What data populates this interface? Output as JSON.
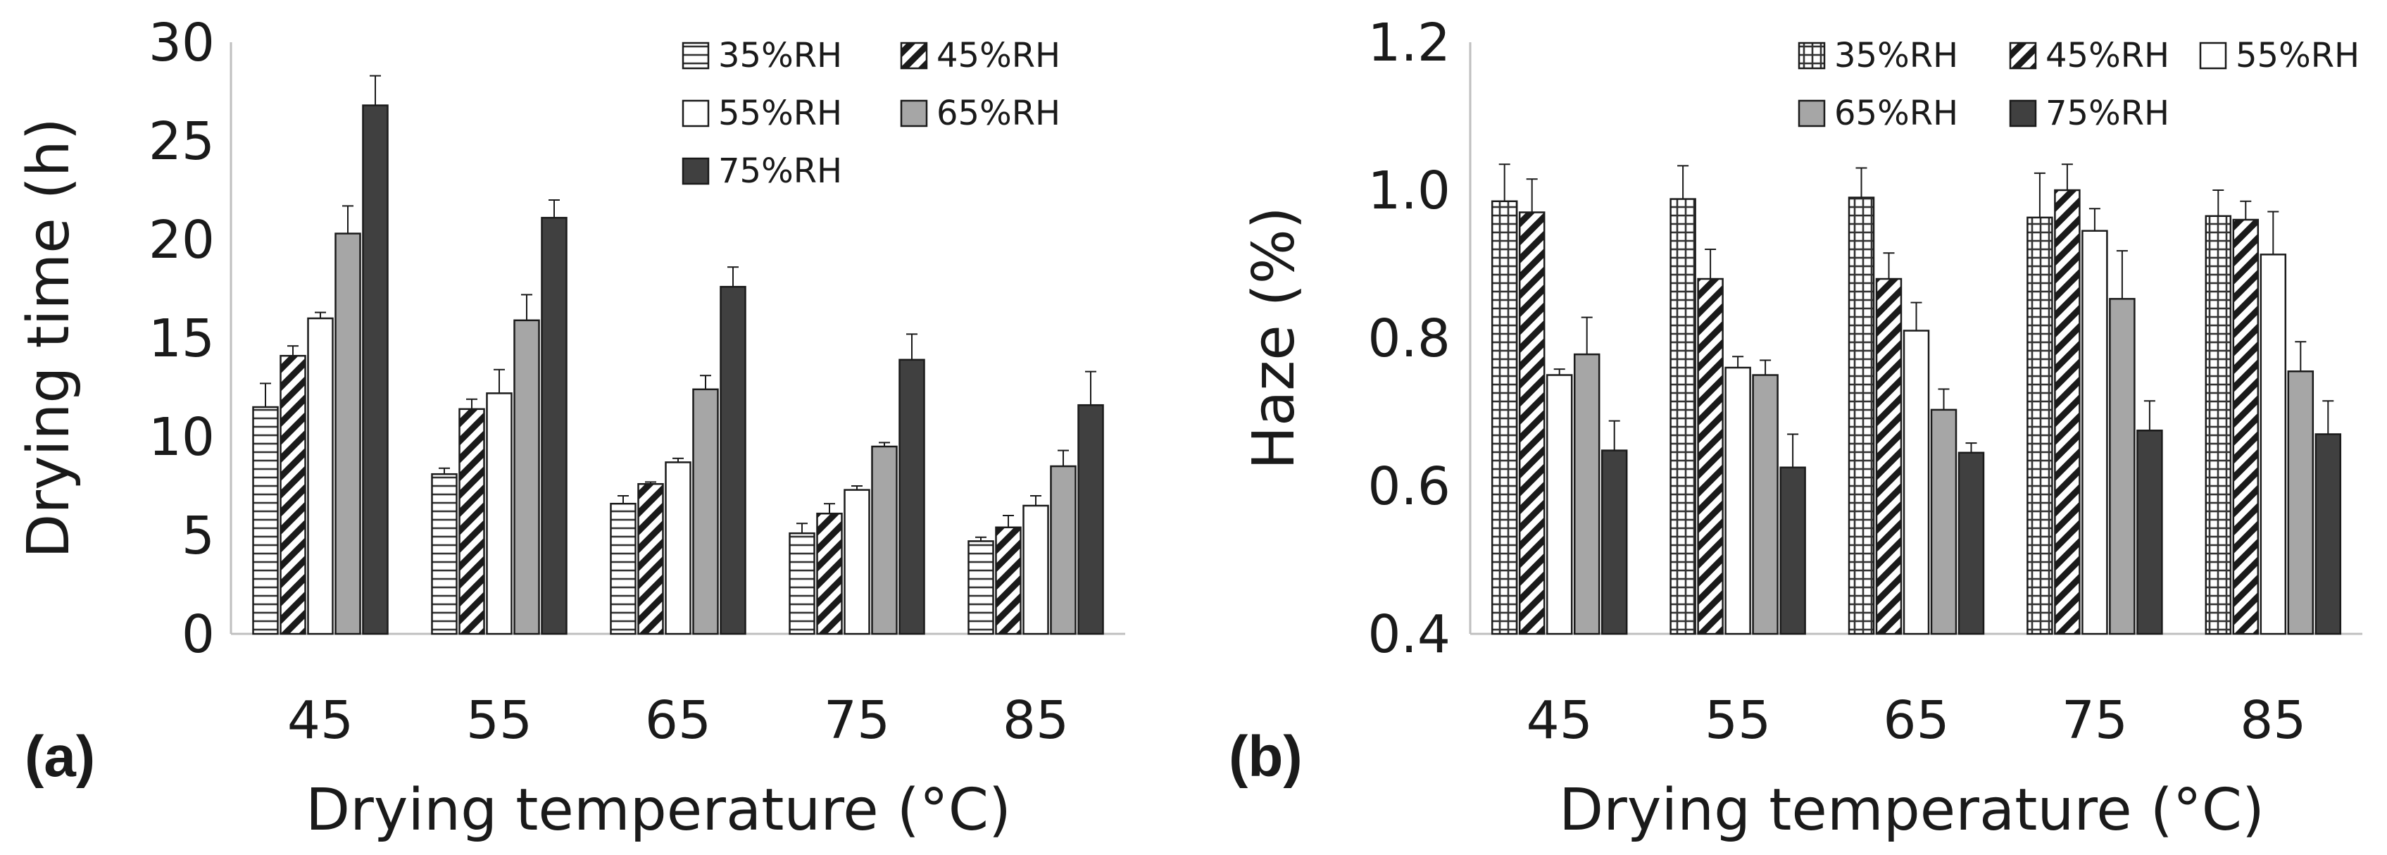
{
  "chart_data": [
    {
      "type": "bar",
      "panel_label": "(a)",
      "ylabel": "Drying time (h)",
      "xlabel": "Drying temperature (°C)",
      "ylim": [
        0,
        30
      ],
      "yticks": [
        "0",
        "5",
        "10",
        "15",
        "20",
        "25",
        "30"
      ],
      "ytick_values": [
        0,
        5,
        10,
        15,
        20,
        25,
        30
      ],
      "categories": [
        "45",
        "55",
        "65",
        "75",
        "85"
      ],
      "legend_position": "top-right",
      "series": [
        {
          "name": "35%RH",
          "style": "hlines",
          "values": [
            11.5,
            8.1,
            6.6,
            5.1,
            4.7
          ],
          "errors": [
            1.2,
            0.3,
            0.4,
            0.5,
            0.2
          ]
        },
        {
          "name": "45%RH",
          "style": "diag",
          "values": [
            14.1,
            11.4,
            7.6,
            6.1,
            5.4
          ],
          "errors": [
            0.5,
            0.5,
            0.1,
            0.5,
            0.6
          ]
        },
        {
          "name": "55%RH",
          "style": "white",
          "values": [
            16.0,
            12.2,
            8.7,
            7.3,
            6.5
          ],
          "errors": [
            0.3,
            1.2,
            0.2,
            0.2,
            0.5
          ]
        },
        {
          "name": "65%RH",
          "style": "gray",
          "values": [
            20.3,
            15.9,
            12.4,
            9.5,
            8.5
          ],
          "errors": [
            1.4,
            1.3,
            0.7,
            0.2,
            0.8
          ]
        },
        {
          "name": "75%RH",
          "style": "dark",
          "values": [
            26.8,
            21.1,
            17.6,
            13.9,
            11.6
          ],
          "errors": [
            1.5,
            0.9,
            1.0,
            1.3,
            1.7
          ]
        }
      ]
    },
    {
      "type": "bar",
      "panel_label": "(b)",
      "ylabel": "Haze (%)",
      "xlabel": "Drying temperature (°C)",
      "ylim": [
        0.4,
        1.2
      ],
      "yticks": [
        "0.4",
        "0.6",
        "0.8",
        "1.0",
        "1.2"
      ],
      "ytick_values": [
        0.4,
        0.6,
        0.8,
        1.0,
        1.2
      ],
      "categories": [
        "45",
        "55",
        "65",
        "75",
        "85"
      ],
      "legend_position": "top-right",
      "series": [
        {
          "name": "35%RH",
          "style": "vlines",
          "values": [
            0.985,
            0.988,
            0.99,
            0.963,
            0.965
          ],
          "errors": [
            0.05,
            0.045,
            0.04,
            0.06,
            0.035
          ]
        },
        {
          "name": "45%RH",
          "style": "diag",
          "values": [
            0.97,
            0.88,
            0.88,
            1.0,
            0.96
          ],
          "errors": [
            0.045,
            0.04,
            0.035,
            0.035,
            0.025
          ]
        },
        {
          "name": "55%RH",
          "style": "white",
          "values": [
            0.75,
            0.76,
            0.81,
            0.945,
            0.913
          ],
          "errors": [
            0.008,
            0.015,
            0.038,
            0.03,
            0.058
          ]
        },
        {
          "name": "65%RH",
          "style": "gray",
          "values": [
            0.778,
            0.75,
            0.703,
            0.853,
            0.755
          ],
          "errors": [
            0.05,
            0.02,
            0.028,
            0.065,
            0.04
          ]
        },
        {
          "name": "75%RH",
          "style": "dark",
          "values": [
            0.648,
            0.625,
            0.645,
            0.675,
            0.67
          ],
          "errors": [
            0.04,
            0.045,
            0.013,
            0.04,
            0.045
          ]
        }
      ]
    }
  ]
}
